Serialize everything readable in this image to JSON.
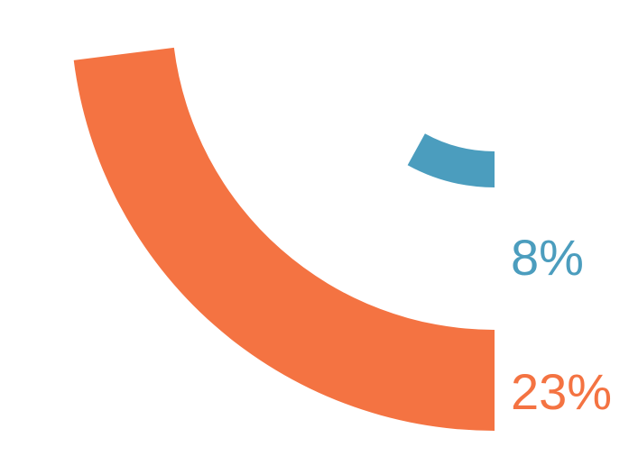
{
  "chart_data": {
    "type": "pie",
    "title": "",
    "series": [
      {
        "value": 8,
        "label": "8%",
        "color": "#4b9dbe"
      },
      {
        "value": 23,
        "label": "23%",
        "color": "#f47342"
      }
    ]
  }
}
